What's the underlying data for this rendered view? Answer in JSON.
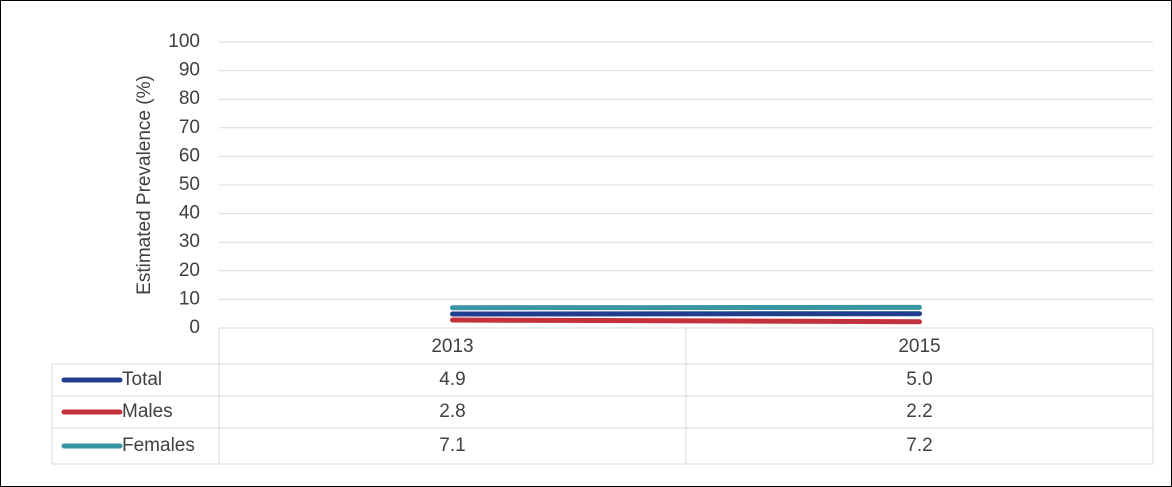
{
  "chart_data": {
    "type": "line",
    "y_label": "Estimated Prevalence (%)",
    "categories": [
      "2013",
      "2015"
    ],
    "series": [
      {
        "name": "Total",
        "color": "#213e8e",
        "values": [
          4.9,
          5.0
        ],
        "value_labels": [
          "4.9",
          "5.0"
        ]
      },
      {
        "name": "Males",
        "color": "#c3323a",
        "values": [
          2.8,
          2.2
        ],
        "value_labels": [
          "2.8",
          "2.2"
        ]
      },
      {
        "name": "Females",
        "color": "#3a96a5",
        "values": [
          7.1,
          7.2
        ],
        "value_labels": [
          "7.1",
          "7.2"
        ]
      }
    ],
    "ylim": [
      0,
      100
    ],
    "yticks": [
      0,
      10,
      20,
      30,
      40,
      50,
      60,
      70,
      80,
      90,
      100
    ],
    "grid": true
  }
}
